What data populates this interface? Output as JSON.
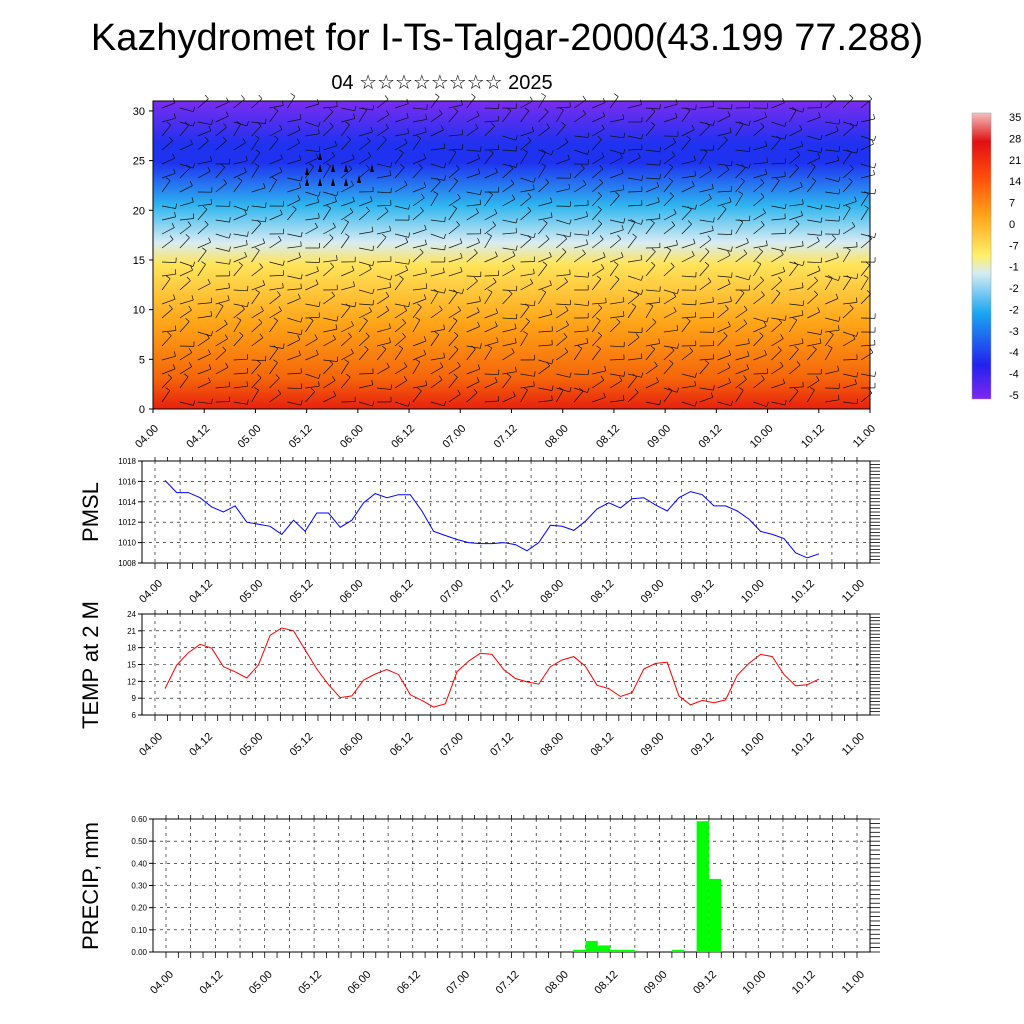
{
  "header": {
    "title": "Kazhydromet for I-Ts-Talgar-2000(43.199 77.288)",
    "subtitle": "04 ☆☆☆☆☆☆☆☆ 2025"
  },
  "chart_data": [
    {
      "type": "heatmap",
      "name": "cross-section",
      "x_tick_labels": [
        "04.00",
        "04.12",
        "05.00",
        "05.12",
        "06.00",
        "06.12",
        "07.00",
        "07.12",
        "08.00",
        "08.12",
        "09.00",
        "09.12",
        "10.00",
        "10.12",
        "11.00"
      ],
      "y_ticks": [
        0,
        5,
        10,
        15,
        20,
        25,
        30
      ],
      "ylim": [
        0,
        31
      ],
      "colorbar_labels": [
        "35",
        "28",
        "21",
        "14",
        "7",
        "0",
        "-7",
        "-1",
        "-2",
        "-2",
        "-3",
        "-4",
        "-4",
        "-5"
      ],
      "colors": {
        "warm": "#e8200e",
        "hot": "#f5650a",
        "orange": "#ffa518",
        "yellow": "#ffe45a",
        "pale": "#d8ecf2",
        "cyan": "#2fb6f0",
        "blue": "#1e32f0",
        "violet": "#7a2cf0"
      }
    },
    {
      "type": "line",
      "name": "PMSL",
      "ylabel": "PMSL",
      "y_ticks": [
        1008,
        1010,
        1012,
        1014,
        1016,
        1018
      ],
      "ylim": [
        1008,
        1018
      ],
      "x_tick_labels": [
        "04.00",
        "04.12",
        "05.00",
        "05.12",
        "06.00",
        "06.12",
        "07.00",
        "07.12",
        "08.00",
        "08.12",
        "09.00",
        "09.12",
        "10.00",
        "10.12",
        "11.00"
      ],
      "color": "#0000ff",
      "values": [
        1016.1,
        1014.9,
        1014.9,
        1014.4,
        1013.5,
        1013.0,
        1013.6,
        1012.0,
        1011.8,
        1011.6,
        1010.8,
        1012.2,
        1011.1,
        1012.9,
        1012.9,
        1011.5,
        1012.2,
        1013.9,
        1014.8,
        1014.4,
        1014.7,
        1014.7,
        1013.1,
        1011.1,
        1010.7,
        1010.3,
        1010.0,
        1009.9,
        1009.9,
        1010.0,
        1009.8,
        1009.2,
        1010.0,
        1011.7,
        1011.6,
        1011.2,
        1012.1,
        1013.3,
        1013.9,
        1013.4,
        1014.3,
        1014.4,
        1013.7,
        1013.1,
        1014.4,
        1015.0,
        1014.7,
        1013.6,
        1013.6,
        1013.1,
        1012.3,
        1011.1,
        1010.8,
        1010.4,
        1009.0,
        1008.5,
        1008.9
      ]
    },
    {
      "type": "line",
      "name": "TEMP",
      "ylabel": "TEMP at 2 M",
      "y_ticks": [
        6,
        9,
        12,
        15,
        18,
        21,
        24
      ],
      "ylim": [
        6,
        24
      ],
      "x_tick_labels": [
        "04.00",
        "04.12",
        "05.00",
        "05.12",
        "06.00",
        "06.12",
        "07.00",
        "07.12",
        "08.00",
        "08.12",
        "09.00",
        "09.12",
        "10.00",
        "10.12",
        "11.00"
      ],
      "color": "#ff0000",
      "values": [
        10.7,
        14.9,
        17.1,
        18.6,
        17.9,
        14.6,
        13.7,
        12.6,
        14.9,
        20.2,
        21.5,
        21.0,
        17.6,
        14.2,
        11.4,
        9.1,
        9.4,
        12.2,
        13.3,
        14.1,
        13.2,
        9.6,
        8.6,
        7.4,
        8.0,
        13.7,
        15.6,
        17.0,
        16.8,
        14.1,
        12.5,
        11.9,
        11.5,
        14.6,
        15.8,
        16.4,
        14.7,
        11.3,
        10.7,
        9.3,
        10.0,
        14.2,
        15.2,
        15.4,
        9.4,
        7.8,
        8.6,
        8.2,
        8.7,
        13.1,
        15.2,
        16.8,
        16.4,
        13.2,
        11.2,
        11.4,
        12.4
      ]
    },
    {
      "type": "bar",
      "name": "PRECIP",
      "ylabel": "PRECIP, mm",
      "y_ticks": [
        "0.00",
        "0.10",
        "0.20",
        "0.30",
        "0.40",
        "0.50",
        "0.60"
      ],
      "ylim": [
        0,
        0.6
      ],
      "x_tick_labels": [
        "04.00",
        "04.12",
        "05.00",
        "05.12",
        "06.00",
        "06.12",
        "07.00",
        "07.12",
        "08.00",
        "08.12",
        "09.00",
        "09.12",
        "10.00",
        "10.12",
        "11.00"
      ],
      "color": "#00ff00",
      "bars": [
        {
          "t": 33.5,
          "v": 0.01
        },
        {
          "t": 34.5,
          "v": 0.05
        },
        {
          "t": 35.5,
          "v": 0.03
        },
        {
          "t": 36.5,
          "v": 0.01
        },
        {
          "t": 37.5,
          "v": 0.01
        },
        {
          "t": 41.5,
          "v": 0.01
        },
        {
          "t": 43.5,
          "v": 0.59
        },
        {
          "t": 44.5,
          "v": 0.33
        }
      ]
    }
  ]
}
